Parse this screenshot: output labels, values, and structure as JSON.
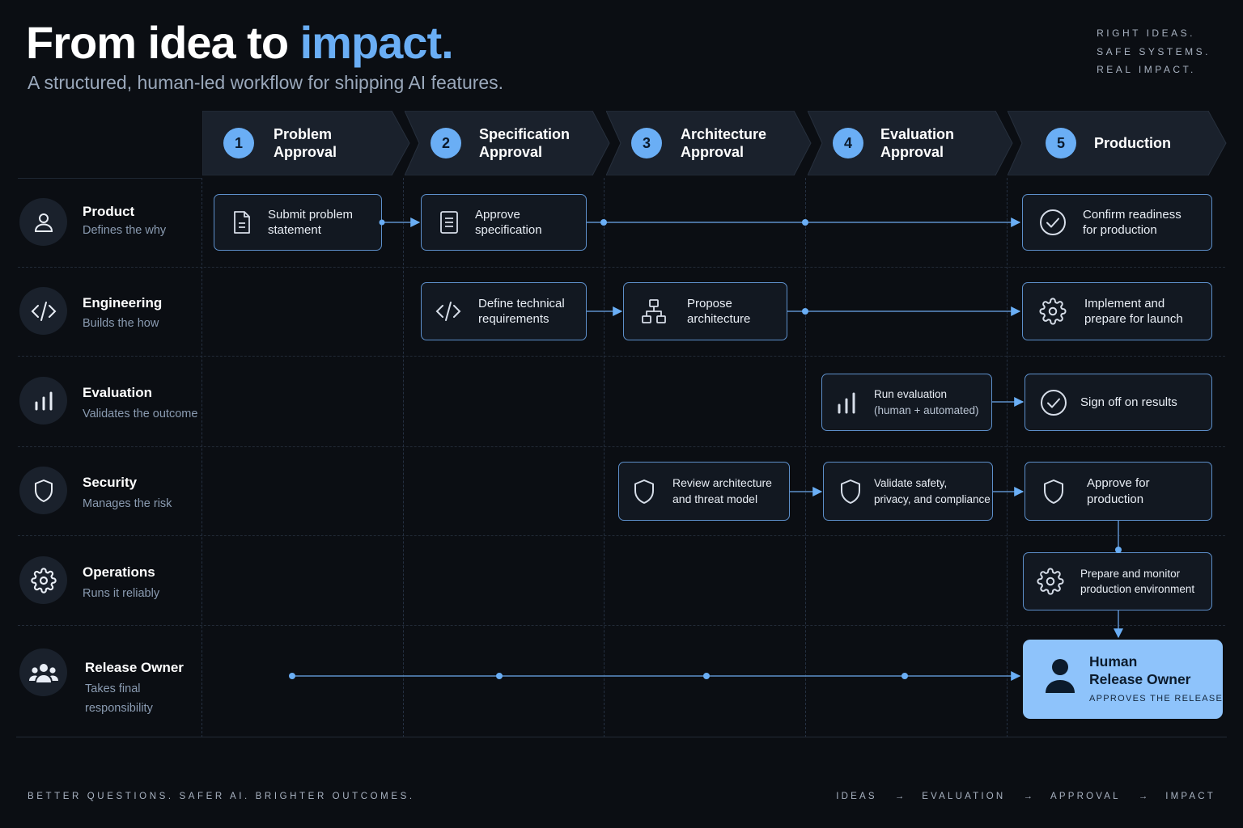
{
  "header": {
    "title_main": "From idea to ",
    "title_accent": "impact.",
    "subtitle": "A structured, human-led workflow for shipping AI features.",
    "tagline": [
      "RIGHT IDEAS.",
      "SAFE SYSTEMS.",
      "REAL IMPACT."
    ]
  },
  "phases": [
    {
      "num": "1",
      "line1": "Problem",
      "line2": "Approval"
    },
    {
      "num": "2",
      "line1": "Specification",
      "line2": "Approval"
    },
    {
      "num": "3",
      "line1": "Architecture",
      "line2": "Approval"
    },
    {
      "num": "4",
      "line1": "Evaluation",
      "line2": "Approval"
    },
    {
      "num": "5",
      "line1": "Production",
      "line2": ""
    }
  ],
  "roles": [
    {
      "name": "Product",
      "desc": "Defines the why",
      "icon": "user-icon"
    },
    {
      "name": "Engineering",
      "desc": "Builds the how",
      "icon": "code-icon"
    },
    {
      "name": "Evaluation",
      "desc": "Validates the outcome",
      "icon": "bar-chart-icon"
    },
    {
      "name": "Security",
      "desc": "Manages the risk",
      "icon": "shield-icon"
    },
    {
      "name": "Operations",
      "desc": "Runs it reliably",
      "icon": "gear-icon"
    },
    {
      "name": "Release Owner",
      "desc1": "Takes final",
      "desc2": "responsibility",
      "icon": "group-icon"
    }
  ],
  "tasks": {
    "submit_problem": [
      "Submit problem",
      "statement"
    ],
    "approve_spec": [
      "Approve",
      "specification"
    ],
    "confirm_readiness": [
      "Confirm readiness",
      "for production"
    ],
    "define_tech": [
      "Define technical",
      "requirements"
    ],
    "propose_arch": [
      "Propose",
      "architecture"
    ],
    "implement": [
      "Implement and",
      "prepare for launch"
    ],
    "run_eval": [
      "Run evaluation",
      "(human + automated)"
    ],
    "sign_off": [
      "Sign off on results"
    ],
    "review_arch": [
      "Review architecture",
      "and threat model"
    ],
    "validate_safety": [
      "Validate safety,",
      "privacy, and compliance"
    ],
    "approve_prod": [
      "Approve for",
      "production"
    ],
    "prepare_monitor": [
      "Prepare and monitor",
      "production environment"
    ]
  },
  "release": {
    "line1": "Human",
    "line2": "Release Owner",
    "sub": "APPROVES THE RELEASE"
  },
  "footer": {
    "left": "BETTER QUESTIONS. SAFER AI. BRIGHTER OUTCOMES.",
    "right": [
      "IDEAS",
      "EVALUATION",
      "APPROVAL",
      "IMPACT"
    ]
  },
  "colors": {
    "accent": "#6aaef5",
    "background": "#0b0e13",
    "box_border": "#5d8fca",
    "release_fill": "#8ec3fb"
  }
}
